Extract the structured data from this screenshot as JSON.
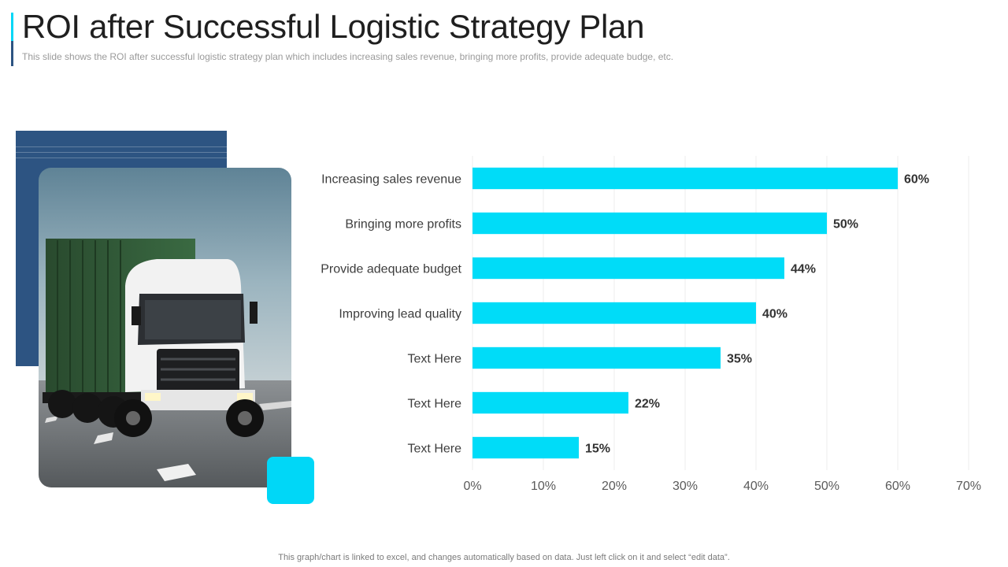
{
  "slide": {
    "title": "ROI after Successful Logistic Strategy Plan",
    "subtitle": "This slide shows the ROI after  successful logistic strategy plan which includes increasing sales revenue,  bringing more profits, provide  adequate budge, etc.",
    "footer": "This graph/chart is linked to excel,  and changes automatically based on data. Just left click on it and select “edit data”.",
    "image": "truck-photo",
    "colors": {
      "accent_cyan": "#00d7f7",
      "accent_navy": "#2d5482",
      "bar": "#00dcf8",
      "title": "#1f1f1f"
    }
  },
  "chart_data": {
    "type": "bar",
    "orientation": "horizontal",
    "categories": [
      "Increasing sales revenue",
      "Bringing more profits",
      "Provide adequate budget",
      "Improving lead quality",
      "Text Here",
      "Text Here",
      "Text Here"
    ],
    "values": [
      60,
      50,
      44,
      40,
      35,
      22,
      15
    ],
    "value_labels": [
      "60%",
      "50%",
      "44%",
      "40%",
      "35%",
      "22%",
      "15%"
    ],
    "x_ticks": [
      "0%",
      "10%",
      "20%",
      "30%",
      "40%",
      "50%",
      "60%",
      "70%"
    ],
    "xlim": [
      0,
      70
    ],
    "grid": true,
    "title": "",
    "xlabel": "",
    "ylabel": ""
  }
}
